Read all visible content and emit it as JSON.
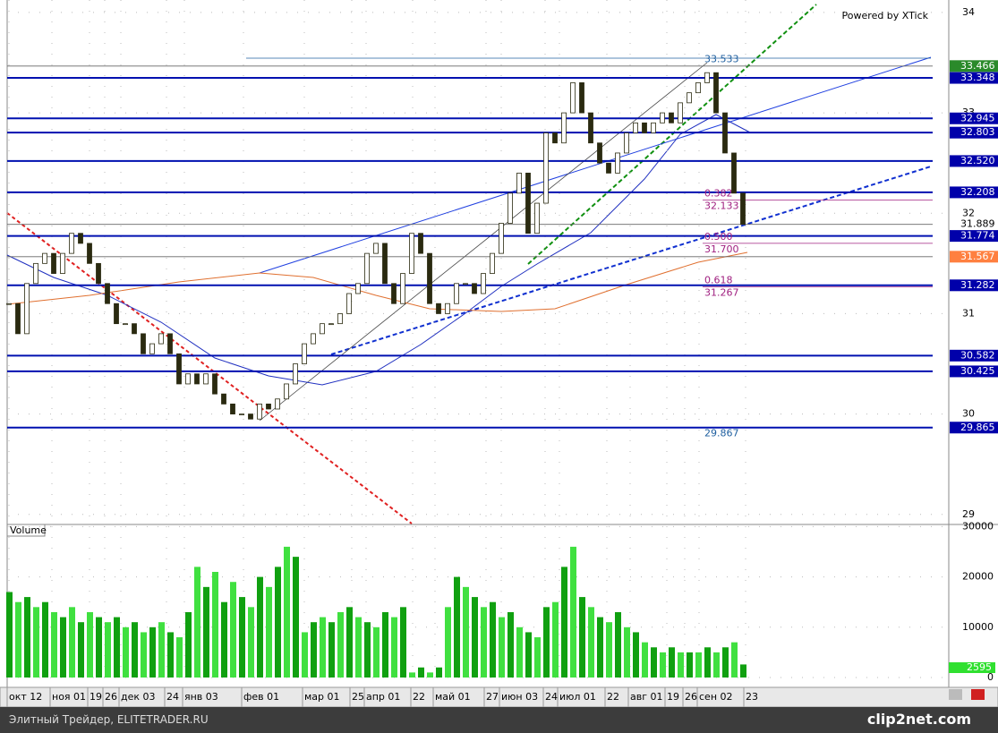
{
  "chart_data": {
    "type": "candlestick",
    "title": "Powered by XTick",
    "volume_label": "Volume",
    "closes": [
      31.1,
      30.8,
      31.3,
      31.5,
      31.6,
      31.4,
      31.6,
      31.8,
      31.7,
      31.5,
      31.3,
      31.1,
      30.9,
      30.9,
      30.8,
      30.6,
      30.7,
      30.8,
      30.6,
      30.3,
      30.4,
      30.3,
      30.4,
      30.2,
      30.1,
      30.0,
      30.0,
      29.95,
      30.1,
      30.05,
      30.15,
      30.3,
      30.5,
      30.7,
      30.8,
      30.9,
      30.9,
      31.0,
      31.2,
      31.3,
      31.6,
      31.7,
      31.3,
      31.1,
      31.4,
      31.8,
      31.6,
      31.1,
      31.0,
      31.1,
      31.3,
      31.3,
      31.2,
      31.4,
      31.6,
      31.9,
      32.2,
      32.4,
      31.8,
      32.1,
      32.8,
      32.7,
      33.0,
      33.3,
      33.0,
      32.7,
      32.5,
      32.4,
      32.6,
      32.8,
      32.9,
      32.8,
      32.9,
      33.0,
      32.9,
      33.1,
      33.2,
      33.3,
      33.4,
      33.0,
      32.6,
      32.2,
      31.889
    ],
    "volumes": [
      17000,
      15000,
      16000,
      14000,
      15000,
      13000,
      12000,
      14000,
      11000,
      13000,
      12000,
      11000,
      12000,
      10000,
      11000,
      9000,
      10000,
      11000,
      9000,
      8000,
      13000,
      22000,
      18000,
      21000,
      15000,
      19000,
      16000,
      14000,
      20000,
      18000,
      22000,
      26000,
      24000,
      9000,
      11000,
      12000,
      11000,
      13000,
      14000,
      12000,
      11000,
      10000,
      13000,
      12000,
      14000,
      1000,
      2000,
      1000,
      2000,
      14000,
      20000,
      18000,
      16000,
      14000,
      15000,
      12000,
      13000,
      10000,
      9000,
      8000,
      14000,
      15000,
      22000,
      26000,
      16000,
      14000,
      12000,
      11000,
      13000,
      10000,
      9000,
      7000,
      6000,
      5000,
      6000,
      5000,
      5000,
      5000,
      6000,
      5000,
      6000,
      7000,
      2595
    ],
    "volume_value_labels": {
      "82": "2595"
    },
    "xlim": [
      0,
      105
    ],
    "xticks": [
      {
        "value": 0,
        "label": "окт 12"
      },
      {
        "value": 4.8,
        "label": "ноя 01"
      },
      {
        "value": 9,
        "label": "19"
      },
      {
        "value": 10.7,
        "label": "26"
      },
      {
        "value": 12.5,
        "label": "дек 03"
      },
      {
        "value": 17.6,
        "label": "24"
      },
      {
        "value": 19.6,
        "label": "янв 03"
      },
      {
        "value": 26.2,
        "label": "фев 01"
      },
      {
        "value": 33,
        "label": "мар 01"
      },
      {
        "value": 38.3,
        "label": "25"
      },
      {
        "value": 39.9,
        "label": "апр 01"
      },
      {
        "value": 45.1,
        "label": "22"
      },
      {
        "value": 47.6,
        "label": "май 01"
      },
      {
        "value": 53.3,
        "label": "27"
      },
      {
        "value": 55,
        "label": "июн 03"
      },
      {
        "value": 59.9,
        "label": "24"
      },
      {
        "value": 61.5,
        "label": "июл 01"
      },
      {
        "value": 66.8,
        "label": "22"
      },
      {
        "value": 69.4,
        "label": "авг 01"
      },
      {
        "value": 73.5,
        "label": "19"
      },
      {
        "value": 75.5,
        "label": "26"
      },
      {
        "value": 77.1,
        "label": "сен 02"
      },
      {
        "value": 82.3,
        "label": "23"
      }
    ],
    "ylim": [
      28.9,
      34.124
    ],
    "yticks": [
      29,
      30,
      31,
      32,
      33,
      34
    ],
    "y2lim": [
      0,
      30073
    ],
    "y2ticks": [
      0,
      10000,
      20000,
      30000
    ],
    "levels": [
      {
        "value": 33.466,
        "label": "33.466",
        "color": "#2a8a2a"
      },
      {
        "value": 33.348,
        "label": "33.348",
        "color": "#0000aa"
      },
      {
        "value": 32.945,
        "label": "32.945",
        "color": "#0000aa"
      },
      {
        "value": 32.803,
        "label": "32.803",
        "color": "#0000aa"
      },
      {
        "value": 32.52,
        "label": "32.520",
        "color": "#0000aa"
      },
      {
        "value": 32.208,
        "label": "32.208",
        "color": "#0000aa"
      },
      {
        "value": 31.889,
        "label": "31.889",
        "color": "#000000"
      },
      {
        "value": 31.774,
        "label": "31.774",
        "color": "#0000aa"
      },
      {
        "value": 31.567,
        "label": "31.567",
        "color": "#ff8040"
      },
      {
        "value": 31.282,
        "label": "31.282",
        "color": "#0000aa"
      },
      {
        "value": 30.582,
        "label": "30.582",
        "color": "#0000aa"
      },
      {
        "value": 30.425,
        "label": "30.425",
        "color": "#0000aa"
      },
      {
        "value": 29.865,
        "label": "29.865",
        "color": "#0000aa"
      }
    ],
    "fib": [
      {
        "ratio": "0.382",
        "value": 32.133,
        "label": "32.133"
      },
      {
        "ratio": "0.500",
        "value": 31.7,
        "label": "31.700"
      },
      {
        "ratio": "0.618",
        "value": 31.267,
        "label": "31.267"
      }
    ],
    "high_label": {
      "value": 33.533,
      "label": "33.533"
    },
    "low_label": {
      "value": 29.867,
      "label": "29.867"
    }
  },
  "footer": {
    "left": "Элитный Трейдер, ELITETRADER.RU",
    "right": "clip2net.com"
  }
}
